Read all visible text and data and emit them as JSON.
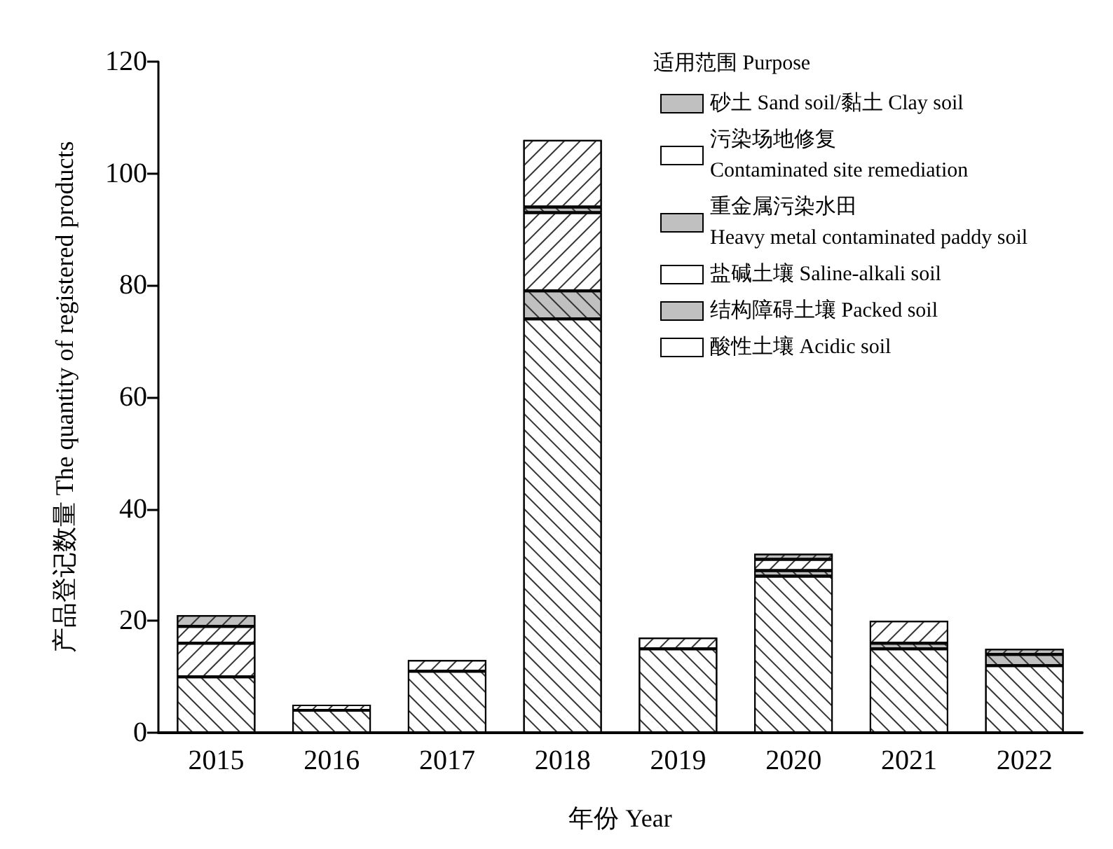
{
  "chart_data": {
    "type": "bar",
    "stacked": true,
    "xlabel": "年份 Year",
    "ylabel": "产品登记数量 The quantity of registered products",
    "legend_title": "适用范围 Purpose",
    "legend": "top right",
    "grid": false,
    "categories": [
      "2015",
      "2016",
      "2017",
      "2018",
      "2019",
      "2020",
      "2021",
      "2022"
    ],
    "ylim": [
      0,
      120
    ],
    "yticks": [
      0,
      20,
      40,
      60,
      80,
      100,
      120
    ],
    "series": [
      {
        "name": "酸性土壤 Acidic soil",
        "color": "#ffffff",
        "values": [
          10,
          4,
          11,
          74,
          15,
          28,
          15,
          12
        ]
      },
      {
        "name": "结构障碍土壤 Packed soil",
        "color": "#c0c0c0",
        "values": [
          0,
          0,
          0,
          5,
          0,
          1,
          1,
          2
        ]
      },
      {
        "name": "盐碱土壤 Saline-alkali soil",
        "color": "#ffffff",
        "values": [
          6,
          1,
          2,
          14,
          2,
          2,
          4,
          0
        ]
      },
      {
        "name": "重金属污染水田\nHeavy metal contaminated paddy soil",
        "color": "#c0c0c0",
        "values": [
          0,
          0,
          0,
          1,
          0,
          0,
          0,
          0
        ]
      },
      {
        "name": "污染场地修复\nContaminated site remediation",
        "color": "#ffffff",
        "values": [
          3,
          0,
          0,
          12,
          0,
          0,
          0,
          0
        ]
      },
      {
        "name": "砂土 Sand soil/黏土 Clay soil",
        "color": "#c0c0c0",
        "values": [
          2,
          0,
          0,
          0,
          0,
          1,
          0,
          1
        ]
      }
    ]
  }
}
